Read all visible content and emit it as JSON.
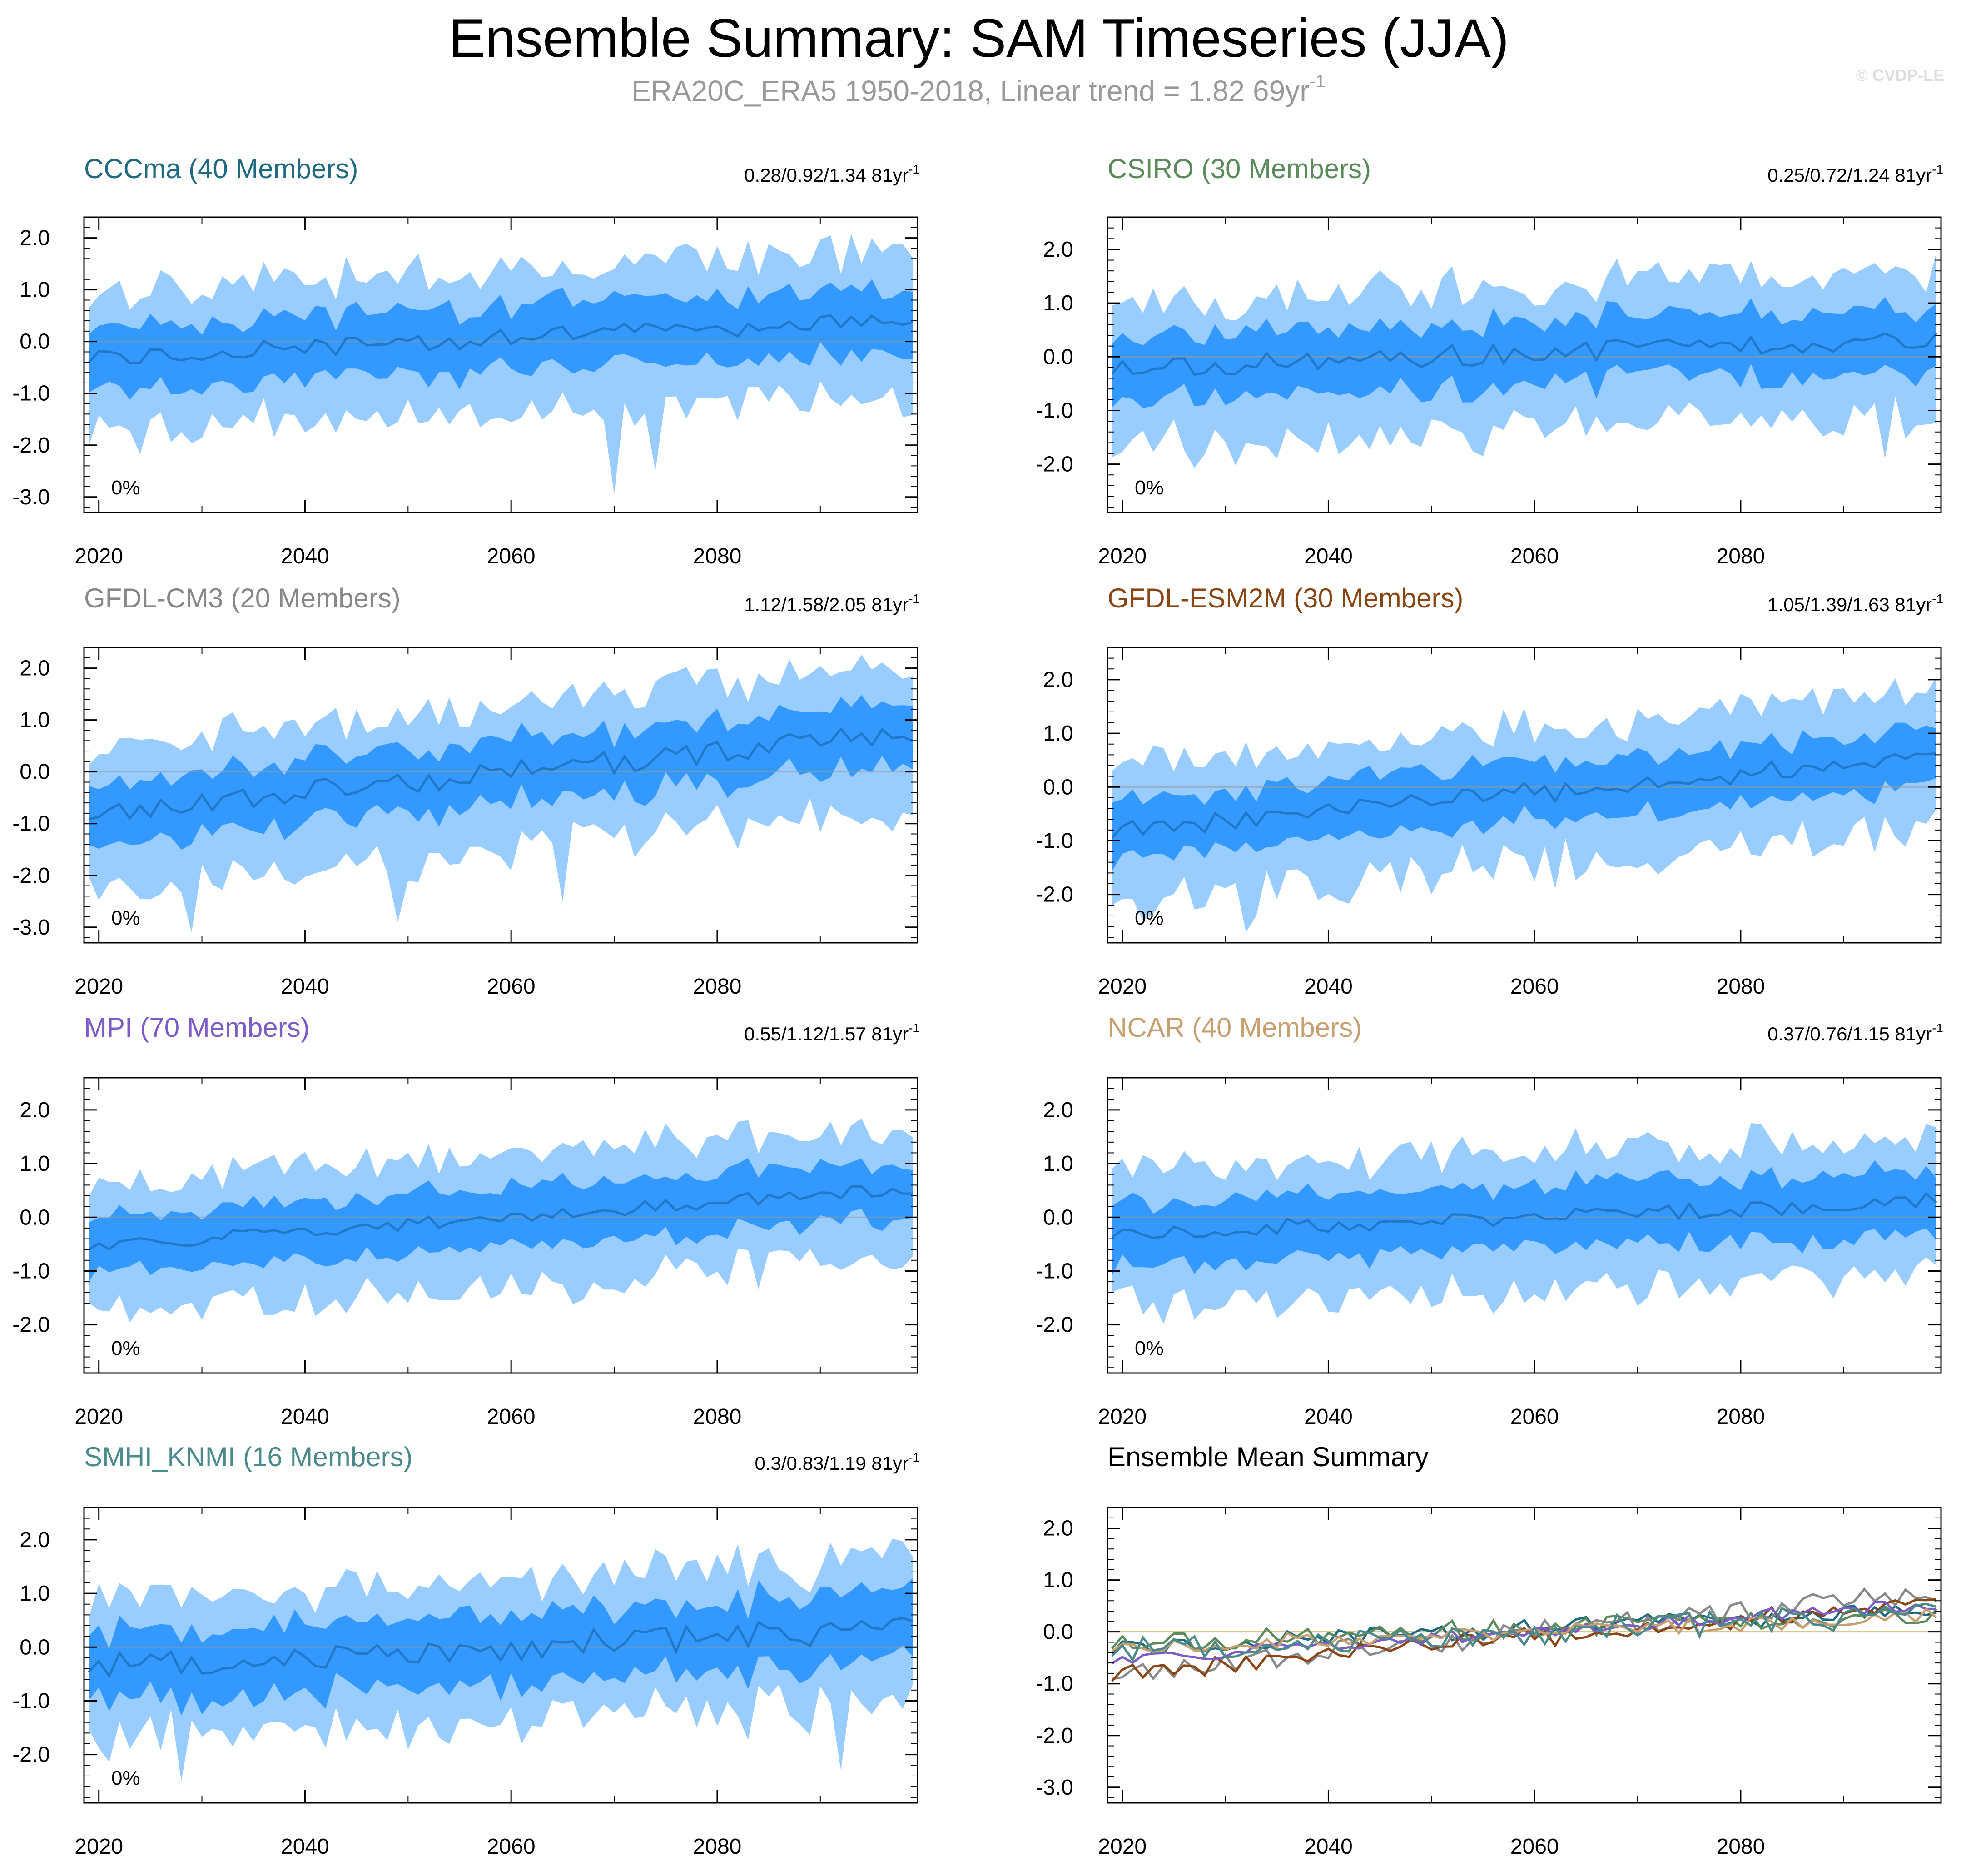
{
  "header": {
    "title": "Ensemble Summary: SAM Timeseries (JJA)",
    "subtitle_main": "ERA20C_ERA5 1950-2018, Linear trend = 1.82 69yr",
    "subtitle_exp": "-1",
    "watermark": "© CVDP-LE"
  },
  "colors": {
    "outer_band": "#99ccff",
    "inner_band": "#3399ff",
    "mean_line": "#1f78c8",
    "zero_line": "#999999",
    "frame": "#000000"
  },
  "chart_data": [
    {
      "type": "area",
      "title": "CCCma (40 Members)",
      "title_color": "#1f6a80",
      "stat": "0.28/0.92/1.34 81yr",
      "stat_exp": "-1",
      "pct": "0%",
      "x_range": [
        2019,
        2099
      ],
      "x_ticks": [
        "2020",
        "2040",
        "2060",
        "2080"
      ],
      "ylim": [
        -3.3,
        2.4
      ],
      "y_ticks": [
        "2.0",
        "1.0",
        "0.0",
        "-1.0",
        "-2.0",
        "-3.0"
      ],
      "trend_start": -0.32,
      "trend_end": 0.42,
      "spread_inner": 0.62,
      "spread_outer": 1.35,
      "noise_amp": 0.18,
      "seed": 11,
      "min_dips": [
        [
          2070,
          -2.95
        ],
        [
          2074,
          -2.5
        ]
      ]
    },
    {
      "type": "area",
      "title": "CSIRO (30 Members)",
      "title_color": "#5b8a5b",
      "stat": "0.25/0.72/1.24 81yr",
      "stat_exp": "-1",
      "pct": "0%",
      "x_range": [
        2019,
        2099
      ],
      "x_ticks": [
        "2020",
        "2040",
        "2060",
        "2080"
      ],
      "ylim": [
        -2.9,
        2.6
      ],
      "y_ticks": [
        "2.0",
        "1.0",
        "0.0",
        "-1.0",
        "-2.0"
      ],
      "trend_start": -0.22,
      "trend_end": 0.35,
      "spread_inner": 0.6,
      "spread_outer": 1.3,
      "noise_amp": 0.2,
      "seed": 23,
      "min_dips": [
        [
          2094,
          -1.9
        ]
      ]
    },
    {
      "type": "area",
      "title": "GFDL-CM3 (20 Members)",
      "title_color": "#888888",
      "stat": "1.12/1.58/2.05 81yr",
      "stat_exp": "-1",
      "pct": "0%",
      "x_range": [
        2019,
        2099
      ],
      "x_ticks": [
        "2020",
        "2040",
        "2060",
        "2080"
      ],
      "ylim": [
        -3.3,
        2.4
      ],
      "y_ticks": [
        "2.0",
        "1.0",
        "0.0",
        "-1.0",
        "-2.0",
        "-3.0"
      ],
      "trend_start": -0.8,
      "trend_end": 0.75,
      "spread_inner": 0.6,
      "spread_outer": 1.35,
      "noise_amp": 0.22,
      "seed": 37,
      "min_dips": [
        [
          2029,
          -3.1
        ],
        [
          2049,
          -2.9
        ],
        [
          2065,
          -2.5
        ]
      ]
    },
    {
      "type": "area",
      "title": "GFDL-ESM2M (30 Members)",
      "title_color": "#8b4513",
      "stat": "1.05/1.39/1.63 81yr",
      "stat_exp": "-1",
      "pct": "0%",
      "x_range": [
        2019,
        2099
      ],
      "x_ticks": [
        "2020",
        "2040",
        "2060",
        "2080"
      ],
      "ylim": [
        -2.9,
        2.6
      ],
      "y_ticks": [
        "2.0",
        "1.0",
        "0.0",
        "-1.0",
        "-2.0"
      ],
      "trend_start": -0.85,
      "trend_end": 0.6,
      "spread_inner": 0.55,
      "spread_outer": 1.25,
      "noise_amp": 0.2,
      "seed": 51,
      "min_dips": [
        [
          2032,
          -2.7
        ]
      ]
    },
    {
      "type": "area",
      "title": "MPI (70 Members)",
      "title_color": "#7b5cc8",
      "stat": "0.55/1.12/1.57 81yr",
      "stat_exp": "-1",
      "pct": "0%",
      "x_range": [
        2019,
        2099
      ],
      "x_ticks": [
        "2020",
        "2040",
        "2060",
        "2080"
      ],
      "ylim": [
        -2.9,
        2.6
      ],
      "y_ticks": [
        "2.0",
        "1.0",
        "0.0",
        "-1.0",
        "-2.0"
      ],
      "trend_start": -0.55,
      "trend_end": 0.55,
      "spread_inner": 0.55,
      "spread_outer": 1.2,
      "noise_amp": 0.12,
      "seed": 67,
      "min_dips": []
    },
    {
      "type": "area",
      "title": "NCAR (40 Members)",
      "title_color": "#c8a070",
      "stat": "0.37/0.76/1.15 81yr",
      "stat_exp": "-1",
      "pct": "0%",
      "x_range": [
        2019,
        2099
      ],
      "x_ticks": [
        "2020",
        "2040",
        "2060",
        "2080"
      ],
      "ylim": [
        -2.9,
        2.6
      ],
      "y_ticks": [
        "2.0",
        "1.0",
        "0.0",
        "-1.0",
        "-2.0"
      ],
      "trend_start": -0.3,
      "trend_end": 0.3,
      "spread_inner": 0.6,
      "spread_outer": 1.25,
      "noise_amp": 0.15,
      "seed": 79,
      "min_dips": []
    },
    {
      "type": "area",
      "title": "SMHI_KNMI (16 Members)",
      "title_color": "#4a8a8a",
      "stat": "0.3/0.83/1.19 81yr",
      "stat_exp": "-1",
      "pct": "0%",
      "x_range": [
        2019,
        2099
      ],
      "x_ticks": [
        "2020",
        "2040",
        "2060",
        "2080"
      ],
      "ylim": [
        -2.9,
        2.6
      ],
      "y_ticks": [
        "2.0",
        "1.0",
        "0.0",
        "-1.0",
        "-2.0"
      ],
      "trend_start": -0.35,
      "trend_end": 0.35,
      "spread_inner": 0.65,
      "spread_outer": 1.3,
      "noise_amp": 0.25,
      "seed": 91,
      "min_dips": [
        [
          2028,
          -2.5
        ],
        [
          2092,
          -2.3
        ]
      ]
    },
    {
      "type": "line",
      "title": "Ensemble Mean Summary",
      "title_color": "#000000",
      "stat": "",
      "stat_exp": "",
      "pct": "",
      "x_range": [
        2019,
        2099
      ],
      "x_ticks": [
        "2020",
        "2040",
        "2060",
        "2080"
      ],
      "ylim": [
        -3.3,
        2.4
      ],
      "y_ticks": [
        "2.0",
        "1.0",
        "0.0",
        "-1.0",
        "-2.0",
        "-3.0"
      ],
      "series": [
        {
          "name": "CCCma",
          "color": "#1f6a80",
          "trend_start": -0.32,
          "trend_end": 0.42,
          "noise_amp": 0.18,
          "seed": 11
        },
        {
          "name": "CSIRO",
          "color": "#5b8a5b",
          "trend_start": -0.22,
          "trend_end": 0.35,
          "noise_amp": 0.2,
          "seed": 23
        },
        {
          "name": "GFDL-CM3",
          "color": "#888888",
          "trend_start": -0.8,
          "trend_end": 0.75,
          "noise_amp": 0.22,
          "seed": 37
        },
        {
          "name": "GFDL-ESM2M",
          "color": "#8b4513",
          "trend_start": -0.85,
          "trend_end": 0.6,
          "noise_amp": 0.2,
          "seed": 51
        },
        {
          "name": "MPI",
          "color": "#7b5cc8",
          "trend_start": -0.55,
          "trend_end": 0.55,
          "noise_amp": 0.12,
          "seed": 67
        },
        {
          "name": "NCAR",
          "color": "#c8a070",
          "trend_start": -0.3,
          "trend_end": 0.3,
          "noise_amp": 0.15,
          "seed": 79
        },
        {
          "name": "SMHI_KNMI",
          "color": "#4a8a8a",
          "trend_start": -0.35,
          "trend_end": 0.35,
          "noise_amp": 0.25,
          "seed": 91
        }
      ]
    }
  ]
}
